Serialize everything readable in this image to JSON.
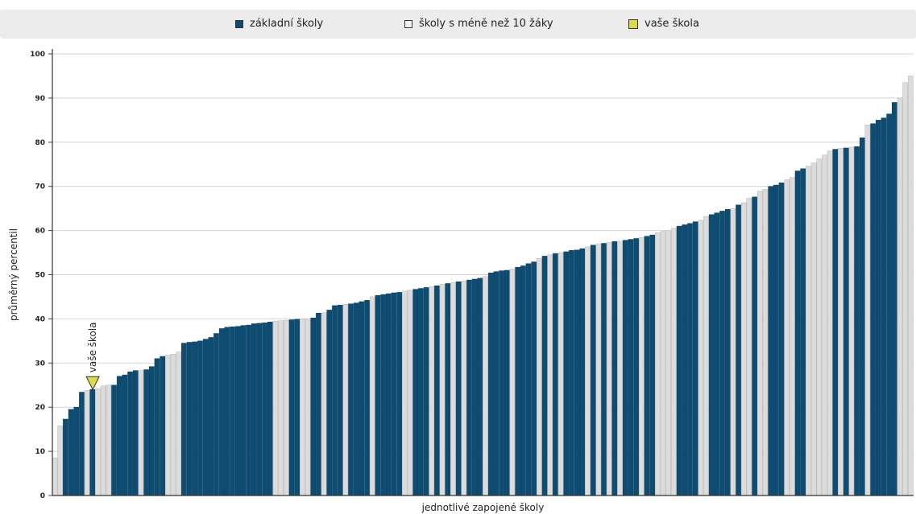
{
  "legend": {
    "items": [
      {
        "label": "základní školy",
        "color": "#0d4d73"
      },
      {
        "label": "školy s méně než 10 žáky",
        "color": "#dcdcdc"
      },
      {
        "label": "vaše škola",
        "color": "#dbdb4a"
      }
    ]
  },
  "chart_data": {
    "type": "bar",
    "title": "",
    "xlabel": "jednotlivé zapojené školy",
    "ylabel": "průměrný percentil",
    "ylim": [
      0,
      100
    ],
    "yticks": [
      0,
      10,
      20,
      30,
      40,
      50,
      60,
      70,
      80,
      90,
      100
    ],
    "grid": true,
    "legend_position": "top",
    "colors": {
      "basic": "#0d4d73",
      "small": "#dcdcdc",
      "yours": "#dbdb4a"
    },
    "annotation": {
      "label": "vaše škola",
      "school_index": 7,
      "value": 24
    },
    "series": [
      {
        "name": "základní školy",
        "type": "basic"
      },
      {
        "name": "školy s méně než 10 žáky",
        "type": "small"
      }
    ],
    "values": [
      8.5,
      15.8,
      17.3,
      19.5,
      20.0,
      23.4,
      23.8,
      24.0,
      24.2,
      24.8,
      25.0,
      25.0,
      27.0,
      27.3,
      28.0,
      28.3,
      28.3,
      28.5,
      29.2,
      31.0,
      31.5,
      31.8,
      32.0,
      32.5,
      34.5,
      34.7,
      34.8,
      35.0,
      35.4,
      35.8,
      36.7,
      37.8,
      38.1,
      38.2,
      38.3,
      38.5,
      38.6,
      38.9,
      39.0,
      39.1,
      39.3,
      39.5,
      39.6,
      39.7,
      39.8,
      39.9,
      40.0,
      40.0,
      40.2,
      41.3,
      41.4,
      42.0,
      43.0,
      43.1,
      43.3,
      43.4,
      43.6,
      43.9,
      44.2,
      45.0,
      45.3,
      45.5,
      45.7,
      45.9,
      46.0,
      46.3,
      46.5,
      46.7,
      46.9,
      47.1,
      47.3,
      47.5,
      47.8,
      48.0,
      48.2,
      48.4,
      48.6,
      48.8,
      49.0,
      49.2,
      49.6,
      50.4,
      50.7,
      50.9,
      51.0,
      51.3,
      51.7,
      52.0,
      52.5,
      52.9,
      53.7,
      54.2,
      54.5,
      54.8,
      55.0,
      55.2,
      55.5,
      55.6,
      55.9,
      56.3,
      56.7,
      57.0,
      57.1,
      57.3,
      57.5,
      57.6,
      57.8,
      58.0,
      58.2,
      58.4,
      58.7,
      59.0,
      59.5,
      59.8,
      60.0,
      60.5,
      61.0,
      61.3,
      61.6,
      62.0,
      62.3,
      63.2,
      63.6,
      64.0,
      64.4,
      64.8,
      65.0,
      65.8,
      66.3,
      67.3,
      67.6,
      68.9,
      69.3,
      70.0,
      70.3,
      70.8,
      71.5,
      72.0,
      73.5,
      74.0,
      74.6,
      75.3,
      76.2,
      77.1,
      78.0,
      78.4,
      78.6,
      78.7,
      78.9,
      79.0,
      81.0,
      83.9,
      84.2,
      85.0,
      85.5,
      86.4,
      89.0,
      90.0,
      93.5,
      95.0
    ],
    "types": [
      "small",
      "small",
      "basic",
      "basic",
      "basic",
      "basic",
      "small",
      "basic",
      "small",
      "small",
      "small",
      "basic",
      "basic",
      "basic",
      "basic",
      "basic",
      "small",
      "basic",
      "basic",
      "basic",
      "basic",
      "small",
      "small",
      "small",
      "basic",
      "basic",
      "basic",
      "basic",
      "basic",
      "basic",
      "basic",
      "basic",
      "basic",
      "basic",
      "basic",
      "basic",
      "basic",
      "basic",
      "basic",
      "basic",
      "basic",
      "small",
      "small",
      "small",
      "basic",
      "basic",
      "small",
      "small",
      "basic",
      "basic",
      "small",
      "basic",
      "basic",
      "basic",
      "small",
      "basic",
      "basic",
      "basic",
      "basic",
      "small",
      "basic",
      "basic",
      "basic",
      "basic",
      "basic",
      "small",
      "small",
      "basic",
      "basic",
      "basic",
      "small",
      "basic",
      "small",
      "basic",
      "small",
      "basic",
      "small",
      "basic",
      "basic",
      "basic",
      "small",
      "basic",
      "basic",
      "basic",
      "basic",
      "small",
      "basic",
      "basic",
      "basic",
      "basic",
      "small",
      "basic",
      "small",
      "basic",
      "small",
      "basic",
      "basic",
      "basic",
      "basic",
      "small",
      "basic",
      "small",
      "basic",
      "small",
      "basic",
      "small",
      "basic",
      "basic",
      "basic",
      "small",
      "basic",
      "basic",
      "small",
      "small",
      "small",
      "small",
      "basic",
      "basic",
      "basic",
      "basic",
      "small",
      "small",
      "basic",
      "basic",
      "basic",
      "basic",
      "small",
      "basic",
      "small",
      "small",
      "basic",
      "small",
      "small",
      "basic",
      "basic",
      "basic",
      "small",
      "small",
      "basic",
      "basic",
      "small",
      "small",
      "small",
      "small",
      "small",
      "basic",
      "small",
      "basic",
      "small",
      "basic",
      "basic",
      "small",
      "basic",
      "basic",
      "basic",
      "basic",
      "basic",
      "small",
      "small",
      "small"
    ]
  }
}
